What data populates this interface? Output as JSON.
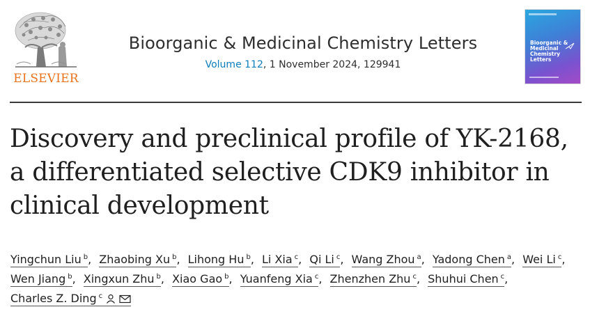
{
  "header": {
    "publisher": "ELSEVIER",
    "journal_title": "Bioorganic & Medicinal Chemistry Letters",
    "volume_label": "Volume 112",
    "issue_rest": ", 1 November 2024, 129941",
    "cover_text": "Bioorganic & Medicinal Chemistry Letters"
  },
  "article": {
    "title_lines": [
      "Discovery and preclinical profile of YK-2168,",
      "a differentiated selective CDK9 inhibitor in",
      "clinical development"
    ]
  },
  "authors": [
    {
      "name": "Yingchun Liu",
      "aff": "b"
    },
    {
      "name": "Zhaobing Xu",
      "aff": "b"
    },
    {
      "name": "Lihong Hu",
      "aff": "b"
    },
    {
      "name": "Li Xia",
      "aff": "c"
    },
    {
      "name": "Qi Li",
      "aff": "c"
    },
    {
      "name": "Wang Zhou",
      "aff": "a"
    },
    {
      "name": "Yadong Chen",
      "aff": "a"
    },
    {
      "name": "Wei Li",
      "aff": "c"
    },
    {
      "name": "Wen Jiang",
      "aff": "b"
    },
    {
      "name": "Xingxun Zhu",
      "aff": "b"
    },
    {
      "name": "Xiao Gao",
      "aff": "b"
    },
    {
      "name": "Yuanfeng Xia",
      "aff": "c"
    },
    {
      "name": "Zhenzhen Zhu",
      "aff": "c"
    },
    {
      "name": "Shuhui Chen",
      "aff": "c"
    },
    {
      "name": "Charles Z. Ding",
      "aff": "c"
    }
  ],
  "icons": {
    "corresponding": "person-icon",
    "email": "envelope-icon"
  },
  "colors": {
    "publisher": "#e9711c",
    "volume_link": "#0c7dbb"
  }
}
